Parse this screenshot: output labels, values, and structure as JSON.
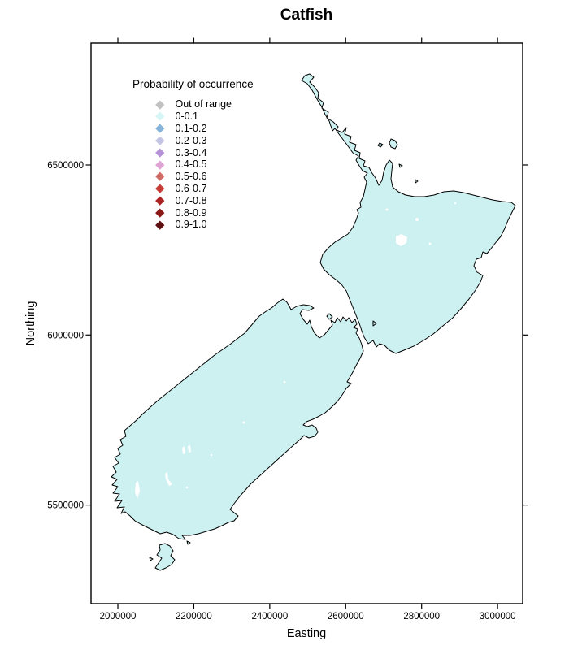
{
  "title": "Catfish",
  "legend": {
    "title": "Probability of occurrence",
    "items": [
      {
        "label": "Out of range",
        "color": "#C1C1C1"
      },
      {
        "label": "0-0.1",
        "color": "#D6F6F6"
      },
      {
        "label": "0.1-0.2",
        "color": "#85B3D9"
      },
      {
        "label": "0.2-0.3",
        "color": "#C4C4E4"
      },
      {
        "label": "0.3-0.4",
        "color": "#B592D8"
      },
      {
        "label": "0.4-0.5",
        "color": "#DFA3D3"
      },
      {
        "label": "0.5-0.6",
        "color": "#D06B65"
      },
      {
        "label": "0.6-0.7",
        "color": "#C63C35"
      },
      {
        "label": "0.7-0.8",
        "color": "#AD2222"
      },
      {
        "label": "0.8-0.9",
        "color": "#8C1717"
      },
      {
        "label": "0.9-1.0",
        "color": "#5E1011"
      }
    ]
  },
  "axes": {
    "x": {
      "label": "Easting",
      "ticks": [
        2000000,
        2200000,
        2400000,
        2600000,
        2800000,
        3000000
      ]
    },
    "y": {
      "label": "Northing",
      "ticks": [
        6500000,
        6000000,
        5500000
      ]
    }
  },
  "map": {
    "region": "New Zealand",
    "fill_color": "#CDF1F1",
    "outline_color": "#000000",
    "lake_color": "#FFFFFF"
  },
  "chart_data": {
    "type": "map",
    "title": "Catfish",
    "map_region": "New Zealand (North Island, South Island, Stewart Island)",
    "xlabel": "Easting",
    "ylabel": "Northing",
    "x_ticks": [
      2000000,
      2200000,
      2400000,
      2600000,
      2800000,
      3000000
    ],
    "y_ticks": [
      6500000,
      6000000,
      5500000
    ],
    "xlim": [
      1929000,
      3066000
    ],
    "ylim": [
      5210000,
      6858000
    ],
    "grid": false,
    "legend_position": "top-left inside plot",
    "legend_title": "Probability of occurrence",
    "classes": [
      "Out of range",
      "0-0.1",
      "0.1-0.2",
      "0.2-0.3",
      "0.3-0.4",
      "0.4-0.5",
      "0.5-0.6",
      "0.6-0.7",
      "0.7-0.8",
      "0.8-0.9",
      "0.9-1.0"
    ],
    "class_colors": [
      "#C1C1C1",
      "#D6F6F6",
      "#85B3D9",
      "#C4C4E4",
      "#B592D8",
      "#DFA3D3",
      "#D06B65",
      "#C63C35",
      "#AD2222",
      "#8C1717",
      "#5E1011"
    ],
    "map_fill_class": "0-0.1",
    "map_fill_description": "Entire New Zealand landmass shaded in the 0-0.1 probability class (pale cyan) with small white lake/no-data patches"
  }
}
